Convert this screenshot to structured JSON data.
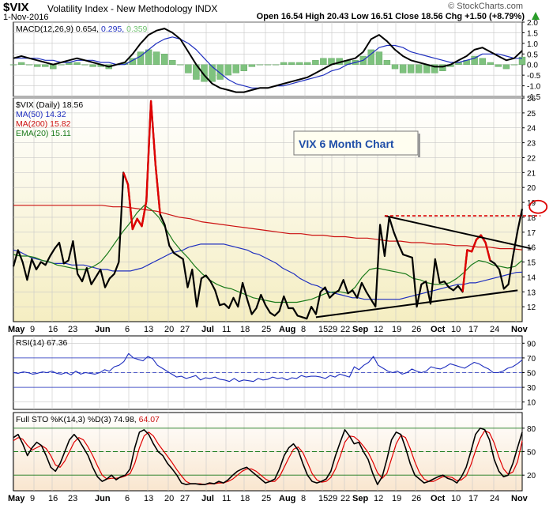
{
  "header": {
    "symbol": "$VIX",
    "name": "Volatility Index - New Methodology  INDX",
    "date": "1-Nov-2016",
    "quote": "Open 16.54  High 20.43  Low 16.51  Close 18.56  Chg +1.50 (+8.79%)",
    "watermark": "© StockCharts.com",
    "up_arrow_color": "#2a9d2a"
  },
  "colors": {
    "price": "#000000",
    "downtrend": "#e00000",
    "ma50": "#1f2fbf",
    "ma200": "#cc1111",
    "ema20": "#1a7a1a",
    "macd_hist": "#7ec27e",
    "price_panel_bg": "#f5eec2",
    "osc_bg": "#f9e6cf"
  },
  "annotation": {
    "label": "VIX 6 Month Chart"
  },
  "x_axis_labels": [
    "May",
    "9",
    "16",
    "23",
    "Jun",
    "6",
    "13",
    "20",
    "27",
    "Jul",
    "11",
    "18",
    "25",
    "Aug",
    "8",
    "15",
    "22",
    "29",
    "Sep",
    "12",
    "19",
    "26",
    "Oct",
    "10",
    "17",
    "24",
    "Nov"
  ],
  "chart_data": [
    {
      "type": "line",
      "panel": "MACD",
      "legend": [
        {
          "text": "MACD(12,26,9) 0.654,",
          "color": "#000000"
        },
        {
          "text": "0.295,",
          "color": "#1f2fbf"
        },
        {
          "text": "0.359",
          "color": "#6fc26f"
        }
      ],
      "y_ticks": [
        "2.0",
        "1.5",
        "1.0",
        "0.5",
        "0.0",
        "-0.5",
        "-1.0",
        "-1.5"
      ],
      "ylim": [
        -1.5,
        2.0
      ],
      "series": [
        {
          "name": "MACD",
          "values": [
            0.3,
            0.4,
            0.3,
            0.2,
            0.1,
            0.0,
            0.1,
            0.2,
            0.3,
            0.2,
            0.1,
            0.0,
            -0.1,
            0.0,
            0.1,
            0.5,
            1.0,
            1.4,
            1.6,
            1.7,
            1.5,
            1.2,
            0.6,
            0.0,
            -0.5,
            -0.9,
            -1.1,
            -1.2,
            -1.3,
            -1.3,
            -1.2,
            -1.1,
            -1.1,
            -1.0,
            -0.9,
            -0.8,
            -0.7,
            -0.6,
            -0.4,
            -0.2,
            0.0,
            0.1,
            0.2,
            0.3,
            0.6,
            1.2,
            1.4,
            1.1,
            0.7,
            0.4,
            0.2,
            0.1,
            0.0,
            -0.1,
            -0.1,
            0.0,
            0.2,
            0.4,
            0.7,
            0.8,
            0.6,
            0.4,
            0.2,
            0.3,
            0.654
          ]
        },
        {
          "name": "Signal",
          "values": [
            0.3,
            0.3,
            0.3,
            0.3,
            0.2,
            0.2,
            0.1,
            0.1,
            0.2,
            0.2,
            0.2,
            0.1,
            0.1,
            0.0,
            0.0,
            0.2,
            0.4,
            0.7,
            1.0,
            1.2,
            1.3,
            1.2,
            1.0,
            0.7,
            0.3,
            -0.1,
            -0.4,
            -0.7,
            -0.9,
            -1.0,
            -1.1,
            -1.1,
            -1.1,
            -1.0,
            -1.0,
            -0.9,
            -0.8,
            -0.7,
            -0.6,
            -0.5,
            -0.3,
            -0.2,
            0.0,
            0.1,
            0.2,
            0.5,
            0.8,
            0.9,
            0.9,
            0.8,
            0.6,
            0.5,
            0.4,
            0.3,
            0.2,
            0.1,
            0.1,
            0.2,
            0.3,
            0.5,
            0.5,
            0.5,
            0.4,
            0.3,
            0.295
          ]
        }
      ]
    },
    {
      "type": "line",
      "panel": "Price",
      "title": "VIX 6 Month Chart",
      "legend": [
        {
          "text": "$VIX (Daily) 18.56",
          "color": "#000000"
        },
        {
          "text": "MA(50) 14.32",
          "color": "#1f2fbf"
        },
        {
          "text": "MA(200) 15.82",
          "color": "#cc1111"
        },
        {
          "text": "EMA(20) 15.11",
          "color": "#1a7a1a"
        }
      ],
      "y_ticks": [
        "26",
        "25",
        "24",
        "23",
        "22",
        "21",
        "20",
        "19",
        "18",
        "17",
        "16",
        "15",
        "14",
        "13",
        "12"
      ],
      "ylim": [
        11,
        26
      ],
      "series": [
        {
          "name": "$VIX (Daily)",
          "values": [
            14.7,
            15.8,
            15.0,
            13.8,
            15.2,
            14.5,
            15.0,
            14.8,
            15.4,
            15.9,
            16.3,
            14.9,
            15.1,
            16.4,
            14.2,
            13.7,
            14.6,
            13.5,
            14.0,
            14.5,
            13.3,
            13.9,
            14.2,
            15.0,
            21.0,
            20.2,
            17.2,
            17.9,
            17.4,
            19.1,
            25.8,
            21.5,
            18.2,
            17.5,
            16.1,
            15.6,
            15.4,
            15.2,
            13.3,
            14.5,
            12.0,
            13.9,
            14.1,
            13.7,
            13.1,
            12.1,
            12.2,
            11.9,
            12.6,
            12.0,
            13.6,
            12.5,
            11.5,
            11.9,
            12.8,
            12.1,
            11.6,
            11.4,
            11.7,
            12.7,
            11.9,
            11.9,
            11.4,
            11.3,
            11.2,
            12.0,
            11.5,
            13.0,
            13.3,
            12.6,
            12.9,
            13.1,
            13.8,
            12.9,
            13.1,
            12.6,
            13.6,
            13.0,
            12.5,
            12.0,
            17.5,
            15.4,
            18.0,
            17.0,
            16.2,
            15.5,
            15.4,
            15.3,
            12.0,
            13.5,
            13.7,
            12.2,
            15.2,
            13.6,
            13.7,
            13.3,
            13.1,
            13.4,
            13.0,
            15.8,
            15.7,
            16.5,
            16.8,
            16.3,
            15.1,
            14.9,
            14.5,
            13.2,
            13.5,
            15.4,
            17.1,
            18.56
          ]
        },
        {
          "name": "MA(50)",
          "values": [
            15.8,
            15.7,
            15.5,
            15.3,
            15.2,
            15.1,
            15.0,
            14.9,
            14.9,
            14.9,
            14.8,
            14.8,
            14.8,
            14.7,
            14.6,
            14.5,
            14.5,
            14.4,
            14.4,
            14.4,
            14.4,
            14.5,
            14.6,
            14.8,
            15.0,
            15.2,
            15.4,
            15.6,
            15.7,
            15.8,
            16.0,
            16.1,
            16.2,
            16.2,
            16.2,
            16.2,
            16.2,
            16.1,
            16.0,
            15.9,
            15.8,
            15.6,
            15.5,
            15.3,
            15.1,
            14.9,
            14.6,
            14.4,
            14.2,
            13.9,
            13.7,
            13.5,
            13.4,
            13.2,
            13.0,
            12.9,
            12.8,
            12.7,
            12.6,
            12.6,
            12.5,
            12.5,
            12.5,
            12.5,
            12.5,
            12.5,
            12.5,
            12.6,
            12.7,
            12.8,
            12.9,
            13.0,
            13.1,
            13.2,
            13.3,
            13.4,
            13.5,
            13.5,
            13.6,
            13.6,
            13.7,
            13.8,
            13.9,
            14.0,
            14.1,
            14.2,
            14.3,
            14.32
          ]
        },
        {
          "name": "MA(200)",
          "values": [
            18.8,
            18.8,
            18.8,
            18.8,
            18.8,
            18.8,
            18.8,
            18.8,
            18.8,
            18.7,
            18.7,
            18.6,
            18.5,
            18.4,
            18.2,
            18.0,
            17.9,
            17.7,
            17.6,
            17.5,
            17.4,
            17.3,
            17.2,
            17.1,
            17.0,
            16.9,
            16.9,
            16.8,
            16.8,
            16.7,
            16.7,
            16.6,
            16.6,
            16.5,
            16.4,
            16.4,
            16.3,
            16.3,
            16.2,
            16.2,
            16.1,
            16.1,
            16.0,
            16.0,
            15.9,
            15.9,
            15.82
          ]
        },
        {
          "name": "EMA(20)",
          "values": [
            15.5,
            15.4,
            15.4,
            15.3,
            15.1,
            15.0,
            14.8,
            14.7,
            14.6,
            14.5,
            14.5,
            14.7,
            15.0,
            15.6,
            16.3,
            17.0,
            17.6,
            18.3,
            18.8,
            18.5,
            18.0,
            17.2,
            16.4,
            15.8,
            15.3,
            14.7,
            14.2,
            13.8,
            13.5,
            13.3,
            13.2,
            13.0,
            12.8,
            12.6,
            12.5,
            12.4,
            12.3,
            12.3,
            12.3,
            12.3,
            12.4,
            12.5,
            12.7,
            12.9,
            13.0,
            13.0,
            12.9,
            13.3,
            14.0,
            14.5,
            14.6,
            14.5,
            14.4,
            14.3,
            14.2,
            13.9,
            13.8,
            13.6,
            13.5,
            13.5,
            13.6,
            13.9,
            14.3,
            14.8,
            15.1,
            15.0,
            14.8,
            14.7,
            14.6,
            14.7,
            15.11
          ]
        }
      ],
      "downtrend_segments": [
        [
          24,
          32
        ],
        [
          98,
          104
        ]
      ],
      "triangle": {
        "upper": [
          [
            81,
            18.1
          ],
          [
            113,
            15.9
          ]
        ],
        "lower": [
          [
            66,
            11.3
          ],
          [
            110,
            13.1
          ]
        ],
        "resistance_level": 18.1,
        "note": "dashed horizontal at the August/September high, red circle at latest close"
      }
    },
    {
      "type": "line",
      "panel": "RSI",
      "legend": [
        {
          "text": "RSI(14) 67.36",
          "color": "#000000"
        }
      ],
      "y_ticks": [
        "90",
        "70",
        "50",
        "30",
        "10"
      ],
      "ylim": [
        0,
        100
      ],
      "bands": [
        70,
        50,
        30
      ],
      "series": [
        {
          "name": "RSI(14)",
          "values": [
            50,
            49,
            51,
            50,
            48,
            49,
            51,
            50,
            52,
            49,
            48,
            50,
            47,
            52,
            48,
            50,
            49,
            48,
            50,
            54,
            52,
            58,
            60,
            65,
            76,
            70,
            68,
            66,
            72,
            69,
            60,
            56,
            52,
            48,
            44,
            45,
            42,
            44,
            46,
            40,
            43,
            42,
            44,
            41,
            40,
            38,
            42,
            38,
            40,
            39,
            38,
            42,
            40,
            41,
            44,
            42,
            43,
            40,
            43,
            42,
            46,
            44,
            45,
            45,
            44,
            42,
            46,
            44,
            48,
            46,
            44,
            58,
            54,
            60,
            64,
            72,
            60,
            56,
            52,
            50,
            52,
            48,
            50,
            55,
            52,
            50,
            52,
            58,
            56,
            55,
            58,
            62,
            60,
            58,
            56,
            60,
            64,
            62,
            58,
            55,
            50,
            50,
            52,
            56,
            58,
            62,
            67.36
          ]
        }
      ]
    },
    {
      "type": "line",
      "panel": "Full STO",
      "legend": [
        {
          "text": "Full STO %K(14,3) %D(3) 74.98,",
          "color": "#000000"
        },
        {
          "text": "64.07",
          "color": "#cc1111"
        }
      ],
      "y_ticks": [
        "80",
        "50",
        "20"
      ],
      "ylim": [
        0,
        100
      ],
      "bands": [
        80,
        50,
        20
      ],
      "series": [
        {
          "name": "%K(14,3)",
          "values": [
            68,
            72,
            60,
            45,
            55,
            62,
            58,
            45,
            30,
            25,
            35,
            50,
            65,
            72,
            65,
            55,
            45,
            30,
            18,
            12,
            15,
            20,
            14,
            18,
            20,
            28,
            55,
            75,
            78,
            72,
            60,
            50,
            45,
            35,
            28,
            20,
            10,
            8,
            9,
            9,
            8,
            8,
            10,
            9,
            12,
            10,
            14,
            20,
            25,
            28,
            30,
            25,
            20,
            15,
            10,
            12,
            15,
            28,
            45,
            55,
            60,
            52,
            35,
            20,
            12,
            10,
            12,
            15,
            25,
            45,
            62,
            78,
            70,
            60,
            62,
            50,
            40,
            22,
            8,
            18,
            40,
            65,
            75,
            72,
            55,
            35,
            20,
            15,
            10,
            12,
            15,
            18,
            20,
            16,
            14,
            10,
            18,
            30,
            50,
            72,
            80,
            78,
            65,
            40,
            25,
            18,
            20,
            35,
            55,
            74.98
          ]
        },
        {
          "name": "%D(3)",
          "values": [
            64,
            68,
            66,
            58,
            52,
            55,
            58,
            54,
            45,
            33,
            30,
            38,
            50,
            62,
            68,
            65,
            56,
            45,
            32,
            20,
            15,
            16,
            16,
            17,
            19,
            22,
            35,
            55,
            70,
            75,
            70,
            60,
            52,
            44,
            36,
            27,
            19,
            12,
            9,
            9,
            9,
            8,
            9,
            9,
            10,
            10,
            12,
            15,
            20,
            25,
            28,
            28,
            25,
            20,
            15,
            12,
            12,
            18,
            30,
            42,
            53,
            56,
            49,
            36,
            22,
            14,
            11,
            12,
            17,
            28,
            44,
            62,
            70,
            69,
            64,
            57,
            49,
            37,
            23,
            16,
            22,
            41,
            60,
            71,
            68,
            54,
            37,
            23,
            15,
            12,
            12,
            15,
            18,
            18,
            17,
            13,
            14,
            19,
            33,
            51,
            67,
            77,
            74,
            61,
            43,
            28,
            21,
            24,
            37,
            64.07
          ]
        }
      ]
    }
  ]
}
